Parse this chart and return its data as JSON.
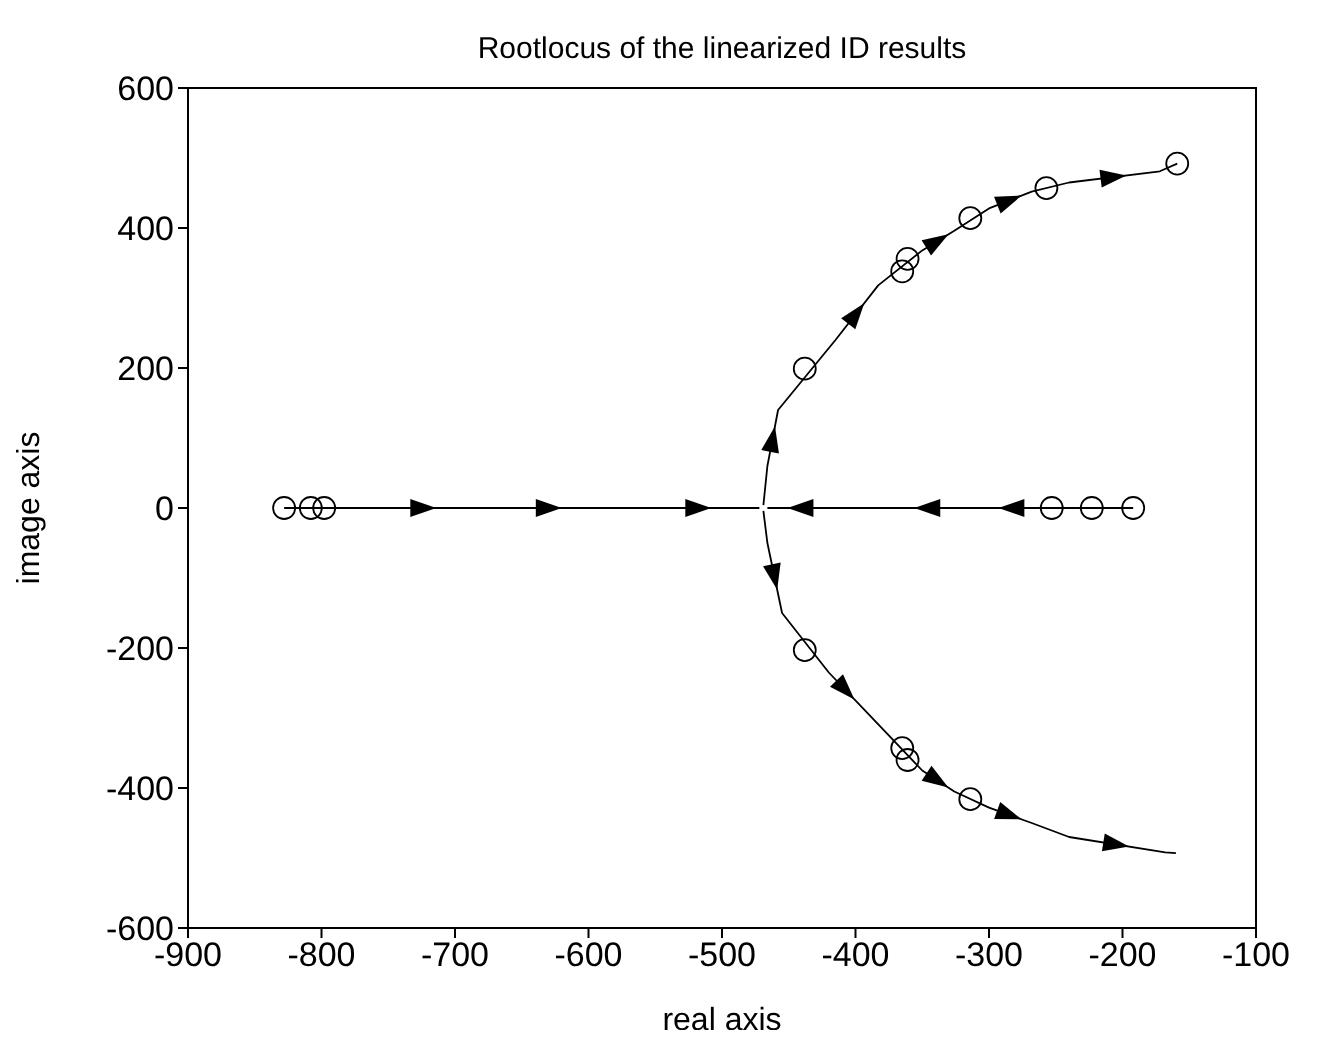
{
  "chart_data": {
    "type": "line",
    "title": "Rootlocus of the linearized ID results",
    "xlabel": "real axis",
    "ylabel": "image axis",
    "xlim": [
      -900,
      -100
    ],
    "xticks": [
      -900,
      -800,
      -700,
      -600,
      -500,
      -400,
      -300,
      -200,
      -100
    ],
    "ylim": [
      -600,
      600
    ],
    "yticks": [
      -600,
      -400,
      -200,
      0,
      200,
      400,
      600
    ],
    "line_style": "solid",
    "marker": "none",
    "series": [
      {
        "color": "#000000",
        "x": [
          -828,
          -740,
          -706,
          -650,
          -608,
          -540,
          -494,
          -472
        ],
        "values": [
          0,
          0,
          0,
          0,
          0,
          0,
          0,
          0
        ]
      },
      {
        "color": "#000000",
        "x": [
          -192,
          -270,
          -298,
          -330,
          -364,
          -425,
          -459,
          -466
        ],
        "values": [
          0,
          0,
          0,
          0,
          0,
          0,
          0,
          0
        ]
      },
      {
        "color": "#000000",
        "x": [
          -469,
          -466,
          -458,
          -415,
          -383,
          -350,
          -326,
          -300,
          -268,
          -240,
          -172,
          -159
        ],
        "values": [
          4,
          60,
          140,
          240,
          318,
          368,
          396,
          428,
          452,
          465,
          481,
          492
        ]
      },
      {
        "color": "#000000",
        "x": [
          -469,
          -466,
          -455,
          -420,
          -394,
          -350,
          -326,
          -300,
          -268,
          -240,
          -168,
          -160
        ],
        "values": [
          -4,
          -50,
          -150,
          -235,
          -287,
          -375,
          -405,
          -428,
          -450,
          -470,
          -492,
          -493
        ]
      },
      {
        "type": "scatter",
        "color": "#000000",
        "marker": "circle",
        "x": [
          -828,
          -808,
          -798,
          -253,
          -223,
          -192,
          -438,
          -365,
          -361,
          -314,
          -257,
          -159,
          -438,
          -365,
          -361,
          -314
        ],
        "values": [
          0,
          0,
          0,
          0,
          0,
          0,
          199,
          338,
          356,
          414,
          457,
          492,
          -203,
          -343,
          -360,
          -416
        ]
      }
    ]
  }
}
